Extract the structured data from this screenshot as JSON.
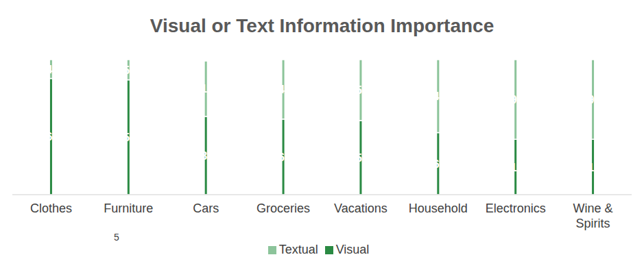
{
  "chart_data": {
    "type": "bar",
    "title": "Visual or Text Information Importance",
    "categories": [
      "Clothes",
      "Furniture",
      "Cars",
      "Groceries",
      "Vacations",
      "Household",
      "Electronics",
      "Wine & Spirits"
    ],
    "series": [
      {
        "name": "Visual",
        "color": "#2a8a43",
        "values": [
          86,
          85,
          58,
          56,
          55,
          46,
          41,
          41
        ],
        "value_labels": [
          "86%",
          "85%",
          "58%",
          "56%",
          "55%",
          "46%",
          "41%",
          "41%"
        ]
      },
      {
        "name": "Textual",
        "color": "#8cc49a",
        "values": [
          14,
          15,
          41,
          44,
          45,
          54,
          59,
          59
        ],
        "value_labels": [
          "14%",
          "15%",
          "41%",
          "44%",
          "45%",
          "54%",
          "59%",
          "59%"
        ]
      }
    ],
    "stacked": true,
    "data_labels": true,
    "ylim": [
      0,
      100
    ],
    "tick_labels": "x",
    "grid": false,
    "legend": "bottom",
    "annotations": [
      "5"
    ]
  }
}
